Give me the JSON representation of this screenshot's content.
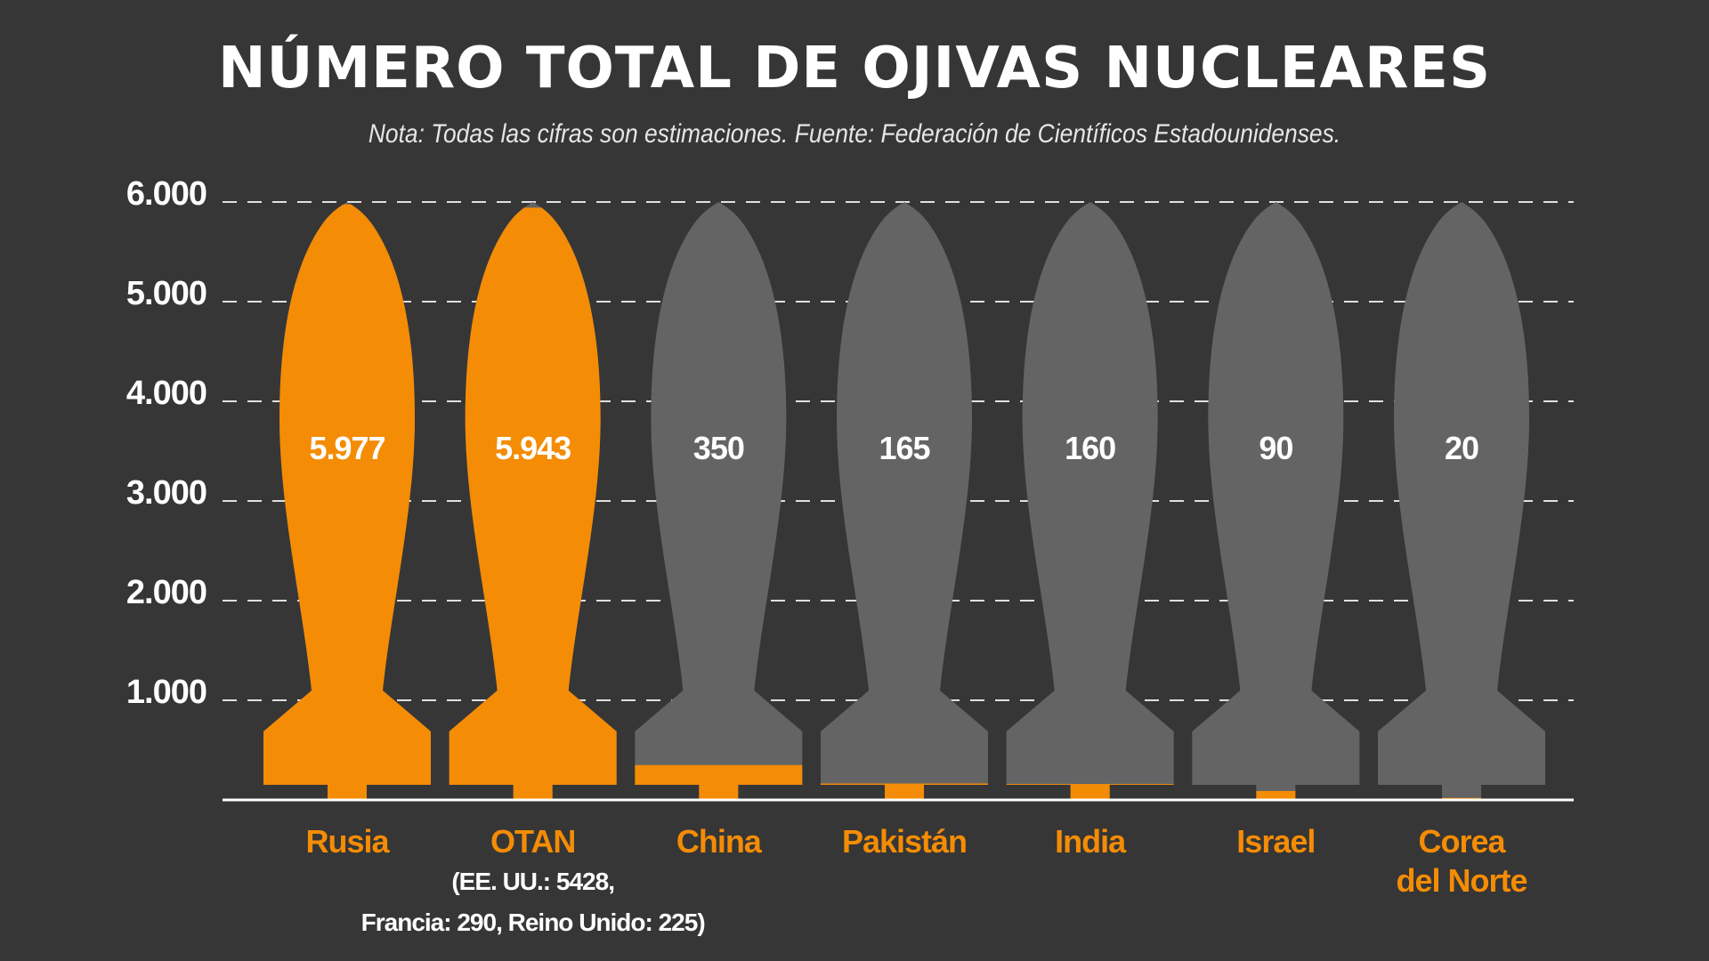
{
  "title": "NÚMERO TOTAL DE OJIVAS NUCLEARES",
  "note": "Nota: Todas las cifras son estimaciones. Fuente: Federación de Científicos Estadounidenses.",
  "colors": {
    "background": "#363636",
    "accent": "#f48c06",
    "empty": "#646464",
    "gridline": "#e0e0e0",
    "text": "#ffffff"
  },
  "chart_data": {
    "type": "bar",
    "title": "NÚMERO TOTAL DE OJIVAS NUCLEARES",
    "xlabel": "",
    "ylabel": "",
    "ylim": [
      0,
      6000
    ],
    "yticks": [
      {
        "value": 6000,
        "label": "6.000"
      },
      {
        "value": 5000,
        "label": "5.000"
      },
      {
        "value": 4000,
        "label": "4.000"
      },
      {
        "value": 3000,
        "label": "3.000"
      },
      {
        "value": 2000,
        "label": "2.000"
      },
      {
        "value": 1000,
        "label": "1.000"
      }
    ],
    "grid": true,
    "categories": [
      {
        "name": "Rusia",
        "lines": [
          "Rusia"
        ],
        "value": 5977,
        "label": "5.977"
      },
      {
        "name": "OTAN",
        "lines": [
          "OTAN"
        ],
        "value": 5943,
        "label": "5.943",
        "detail": [
          "(EE. UU.: 5428,",
          "Francia: 290, Reino Unido: 225)"
        ]
      },
      {
        "name": "China",
        "lines": [
          "China"
        ],
        "value": 350,
        "label": "350"
      },
      {
        "name": "Pakistán",
        "lines": [
          "Pakistán"
        ],
        "value": 165,
        "label": "165"
      },
      {
        "name": "India",
        "lines": [
          "India"
        ],
        "value": 160,
        "label": "160"
      },
      {
        "name": "Israel",
        "lines": [
          "Israel"
        ],
        "value": 90,
        "label": "90"
      },
      {
        "name": "Corea del Norte",
        "lines": [
          "Corea",
          "del Norte"
        ],
        "value": 20,
        "label": "20"
      }
    ]
  }
}
